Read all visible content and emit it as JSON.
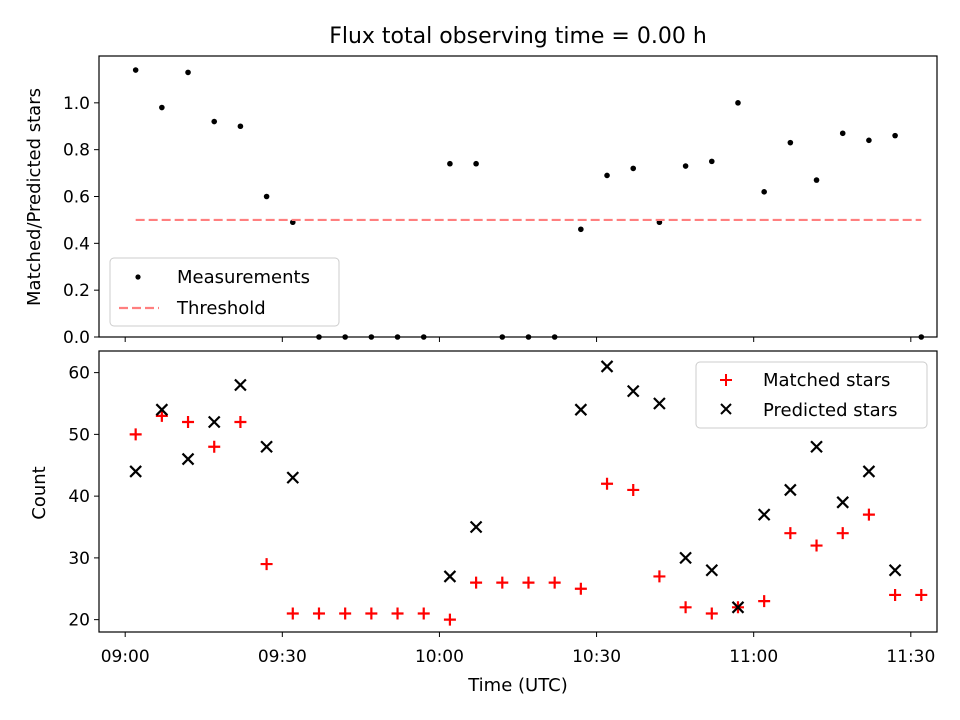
{
  "chart_data": [
    {
      "type": "scatter",
      "title": "Flux total observing time = 0.00 h",
      "ylabel": "Matched/Predicted stars",
      "xlim": [
        "08:55",
        "11:35"
      ],
      "ylim": [
        0,
        1.2
      ],
      "yticks": [
        0.0,
        0.2,
        0.4,
        0.6,
        0.8,
        1.0
      ],
      "ytick_labels": [
        "0.0",
        "0.2",
        "0.4",
        "0.6",
        "0.8",
        "1.0"
      ],
      "legend_position": "lower-left",
      "series": [
        {
          "name": "Measurements",
          "marker": "dot",
          "color": "#000000",
          "points": [
            [
              "09:02",
              1.14
            ],
            [
              "09:07",
              0.98
            ],
            [
              "09:12",
              1.13
            ],
            [
              "09:17",
              0.92
            ],
            [
              "09:22",
              0.9
            ],
            [
              "09:27",
              0.6
            ],
            [
              "09:32",
              0.49
            ],
            [
              "09:37",
              0.0
            ],
            [
              "09:42",
              0.0
            ],
            [
              "09:47",
              0.0
            ],
            [
              "09:52",
              0.0
            ],
            [
              "09:57",
              0.0
            ],
            [
              "10:02",
              0.74
            ],
            [
              "10:07",
              0.74
            ],
            [
              "10:12",
              0.0
            ],
            [
              "10:17",
              0.0
            ],
            [
              "10:22",
              0.0
            ],
            [
              "10:27",
              0.46
            ],
            [
              "10:32",
              0.69
            ],
            [
              "10:37",
              0.72
            ],
            [
              "10:42",
              0.49
            ],
            [
              "10:47",
              0.73
            ],
            [
              "10:52",
              0.75
            ],
            [
              "10:57",
              1.0
            ],
            [
              "11:02",
              0.62
            ],
            [
              "11:07",
              0.83
            ],
            [
              "11:12",
              0.67
            ],
            [
              "11:17",
              0.87
            ],
            [
              "11:22",
              0.84
            ],
            [
              "11:27",
              0.86
            ],
            [
              "11:32",
              0.0
            ]
          ]
        },
        {
          "name": "Threshold",
          "style": "dashed-line",
          "color": "#ff7f7f",
          "points": [
            [
              "09:02",
              0.5
            ],
            [
              "11:32",
              0.5
            ]
          ]
        }
      ]
    },
    {
      "type": "scatter",
      "xlabel": "Time (UTC)",
      "ylabel": "Count",
      "xlim": [
        "08:55",
        "11:35"
      ],
      "ylim": [
        18,
        63.5
      ],
      "yticks": [
        20,
        30,
        40,
        50,
        60
      ],
      "ytick_labels": [
        "20",
        "30",
        "40",
        "50",
        "60"
      ],
      "xticks": [
        "09:00",
        "09:30",
        "10:00",
        "10:30",
        "11:00",
        "11:30"
      ],
      "xtick_labels": [
        "09:00",
        "09:30",
        "10:00",
        "10:30",
        "11:00",
        "11:30"
      ],
      "legend_position": "upper-right",
      "series": [
        {
          "name": "Matched stars",
          "marker": "plus",
          "color": "#ff0000",
          "points": [
            [
              "09:02",
              50
            ],
            [
              "09:07",
              53
            ],
            [
              "09:12",
              52
            ],
            [
              "09:17",
              48
            ],
            [
              "09:22",
              52
            ],
            [
              "09:27",
              29
            ],
            [
              "09:32",
              21
            ],
            [
              "09:37",
              21
            ],
            [
              "09:42",
              21
            ],
            [
              "09:47",
              21
            ],
            [
              "09:52",
              21
            ],
            [
              "09:57",
              21
            ],
            [
              "10:02",
              20
            ],
            [
              "10:07",
              26
            ],
            [
              "10:12",
              26
            ],
            [
              "10:17",
              26
            ],
            [
              "10:22",
              26
            ],
            [
              "10:27",
              25
            ],
            [
              "10:32",
              42
            ],
            [
              "10:37",
              41
            ],
            [
              "10:42",
              27
            ],
            [
              "10:47",
              22
            ],
            [
              "10:52",
              21
            ],
            [
              "10:57",
              22
            ],
            [
              "11:02",
              23
            ],
            [
              "11:07",
              34
            ],
            [
              "11:12",
              32
            ],
            [
              "11:17",
              34
            ],
            [
              "11:22",
              37
            ],
            [
              "11:27",
              24
            ],
            [
              "11:32",
              24
            ]
          ]
        },
        {
          "name": "Predicted stars",
          "marker": "x",
          "color": "#000000",
          "points": [
            [
              "09:02",
              44
            ],
            [
              "09:07",
              54
            ],
            [
              "09:12",
              46
            ],
            [
              "09:17",
              52
            ],
            [
              "09:22",
              58
            ],
            [
              "09:27",
              48
            ],
            [
              "09:32",
              43
            ],
            [
              "10:02",
              27
            ],
            [
              "10:07",
              35
            ],
            [
              "10:27",
              54
            ],
            [
              "10:32",
              61
            ],
            [
              "10:37",
              57
            ],
            [
              "10:42",
              55
            ],
            [
              "10:47",
              30
            ],
            [
              "10:52",
              28
            ],
            [
              "10:57",
              22
            ],
            [
              "11:02",
              37
            ],
            [
              "11:07",
              41
            ],
            [
              "11:12",
              48
            ],
            [
              "11:17",
              39
            ],
            [
              "11:22",
              44
            ],
            [
              "11:27",
              28
            ]
          ]
        }
      ]
    }
  ]
}
